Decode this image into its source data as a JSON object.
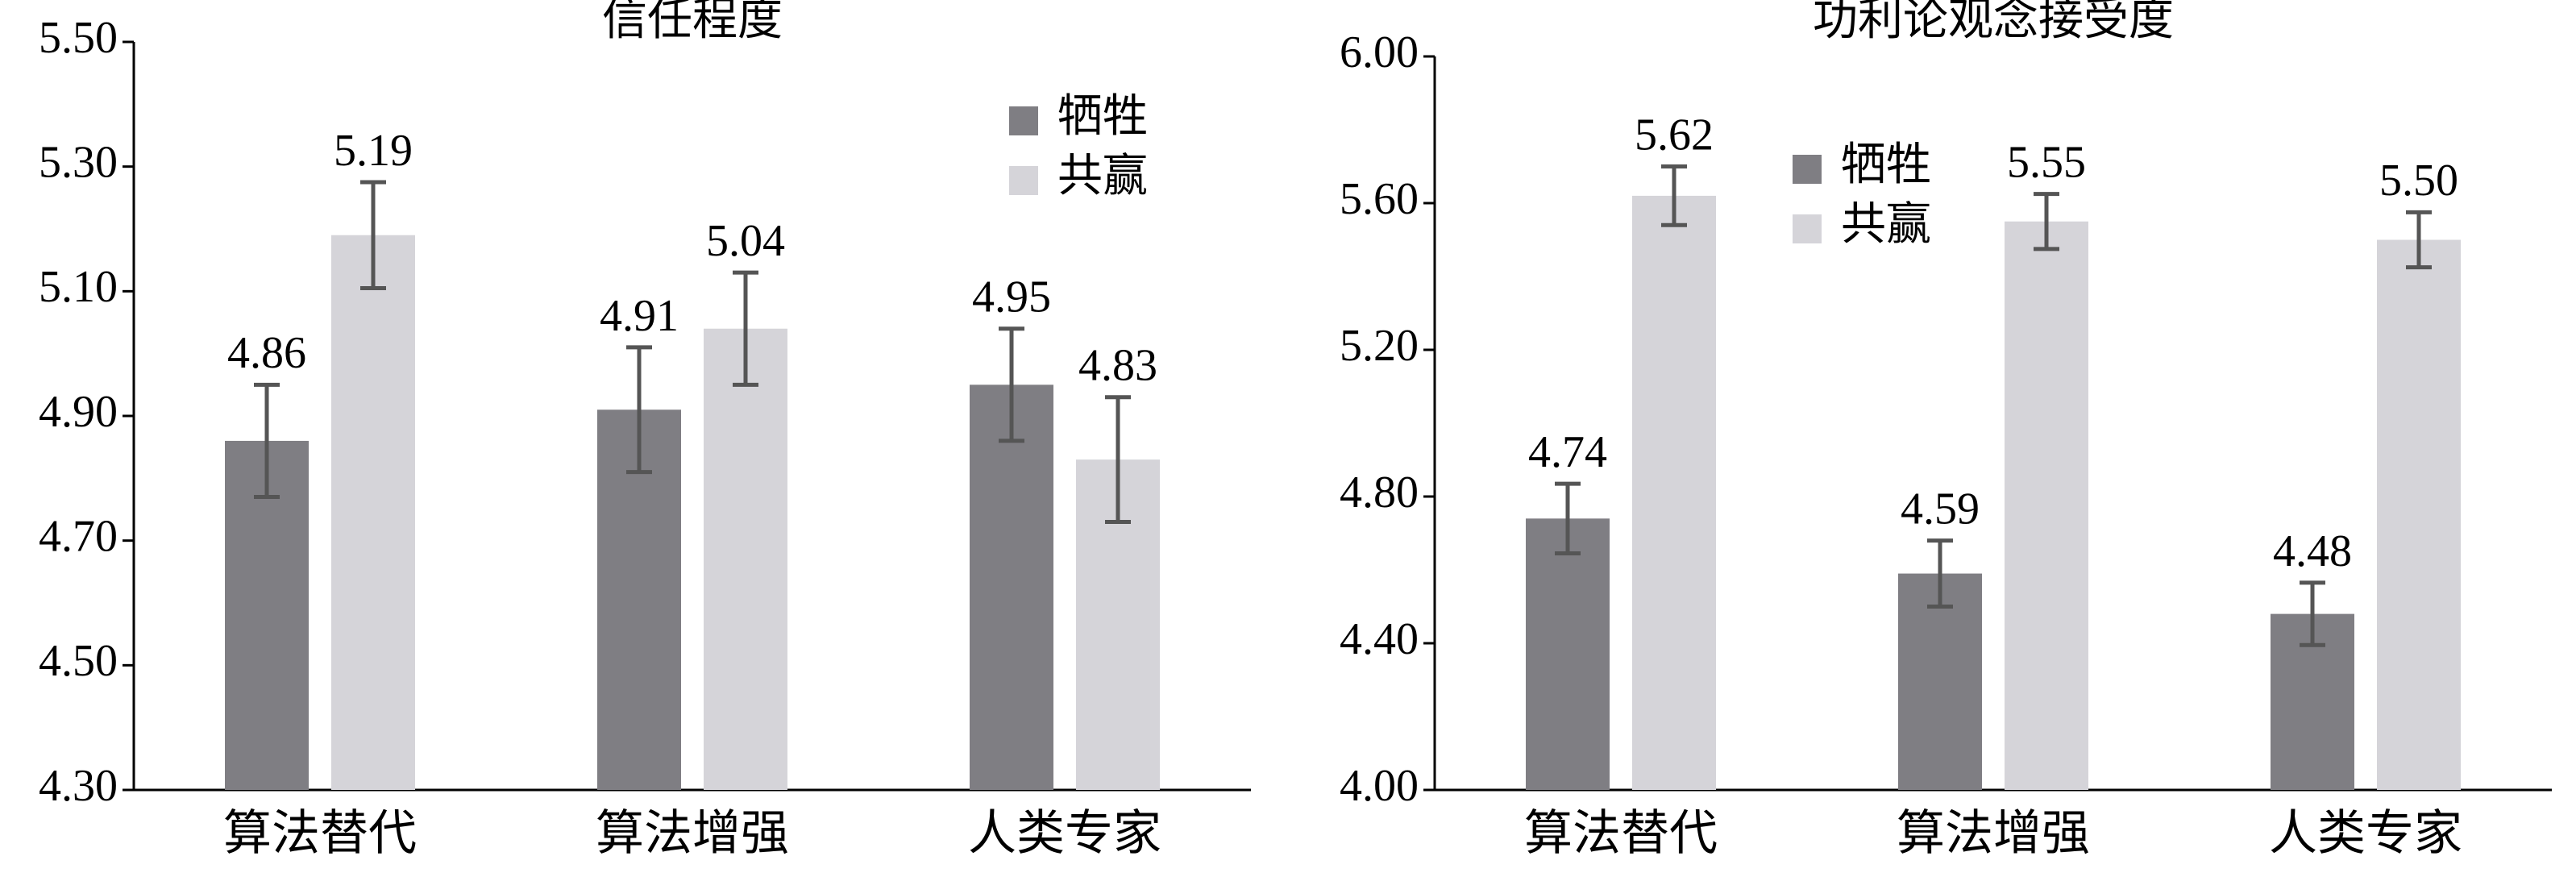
{
  "chart_data": [
    {
      "type": "bar",
      "title": "信任程度",
      "categories": [
        "算法替代",
        "算法增强",
        "人类专家"
      ],
      "series": [
        {
          "name": "牺牲",
          "color": "#7f7e83",
          "values": [
            4.86,
            4.91,
            4.95
          ],
          "errors": [
            0.09,
            0.1,
            0.09
          ]
        },
        {
          "name": "共赢",
          "color": "#d5d4d9",
          "values": [
            5.19,
            5.04,
            4.83
          ],
          "errors": [
            0.085,
            0.09,
            0.1
          ]
        }
      ],
      "ylim": [
        4.3,
        5.5
      ],
      "yticks": [
        {
          "value": 4.3,
          "label": "4.30"
        },
        {
          "value": 4.5,
          "label": "4.50"
        },
        {
          "value": 4.7,
          "label": "4.70"
        },
        {
          "value": 4.9,
          "label": "4.90"
        },
        {
          "value": 5.1,
          "label": "5.10"
        },
        {
          "value": 5.3,
          "label": "5.30"
        },
        {
          "value": 5.5,
          "label": "5.50"
        }
      ],
      "legend": "upper right"
    },
    {
      "type": "bar",
      "title": "功利论观念接受度",
      "categories": [
        "算法替代",
        "算法增强",
        "人类专家"
      ],
      "series": [
        {
          "name": "牺牲",
          "color": "#7f7e83",
          "values": [
            4.74,
            4.59,
            4.48
          ],
          "errors": [
            0.095,
            0.09,
            0.085
          ]
        },
        {
          "name": "共赢",
          "color": "#d5d4d9",
          "values": [
            5.62,
            5.55,
            5.5
          ],
          "value_labels": [
            "5.62",
            "5.55",
            "5.50"
          ],
          "errors": [
            0.08,
            0.075,
            0.075
          ]
        }
      ],
      "ylim": [
        4.0,
        6.0
      ],
      "yticks": [
        {
          "value": 4.0,
          "label": "4.00"
        },
        {
          "value": 4.4,
          "label": "4.40"
        },
        {
          "value": 4.8,
          "label": "4.80"
        },
        {
          "value": 5.2,
          "label": "5.20"
        },
        {
          "value": 5.6,
          "label": "5.60"
        },
        {
          "value": 6.0,
          "label": "6.00"
        }
      ],
      "legend": "upper center"
    }
  ]
}
